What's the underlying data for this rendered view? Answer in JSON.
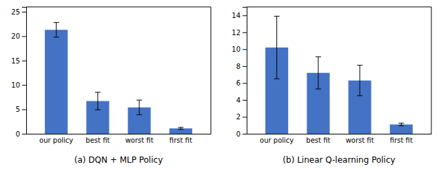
{
  "chart_data": [
    {
      "type": "bar",
      "title": "(a) DQN + MLP Policy",
      "categories": [
        "our policy",
        "best fit",
        "worst fit",
        "first fit"
      ],
      "values": [
        21.3,
        6.7,
        5.4,
        1.1
      ],
      "errors": [
        1.5,
        1.8,
        1.5,
        0.2
      ],
      "color": "#4472C4",
      "ylim": [
        0,
        26
      ],
      "yticks": [
        0,
        5,
        10,
        15,
        20,
        25
      ]
    },
    {
      "type": "bar",
      "title": "(b) Linear Q-learning Policy",
      "categories": [
        "our policy",
        "best fit",
        "worst fit",
        "first fit"
      ],
      "values": [
        10.2,
        7.2,
        6.3,
        1.1
      ],
      "errors": [
        3.7,
        1.9,
        1.8,
        0.15
      ],
      "color": "#4472C4",
      "ylim": [
        0,
        15
      ],
      "yticks": [
        0,
        2,
        4,
        6,
        8,
        10,
        12,
        14
      ]
    }
  ]
}
